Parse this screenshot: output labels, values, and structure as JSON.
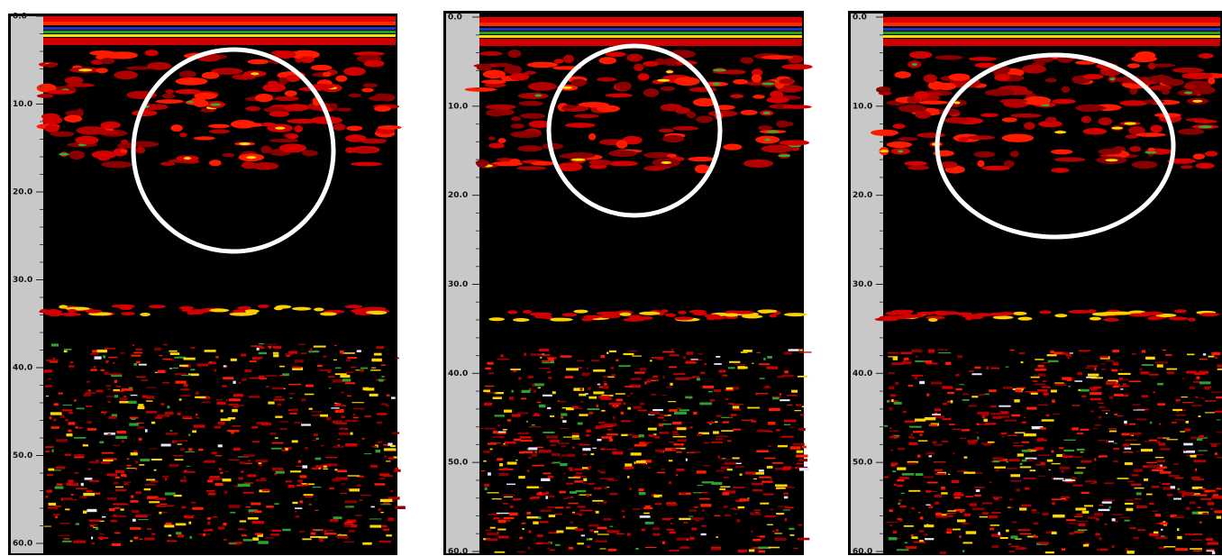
{
  "panels": [
    {
      "depth_labels": [
        "0.0",
        "10.0",
        "20.0",
        "30.0",
        "40.0",
        "50.0",
        "60.0"
      ]
    },
    {
      "depth_labels": [
        "0.0",
        "10.0",
        "20.0",
        "30.0",
        "40.0",
        "50.0",
        "60.0"
      ]
    },
    {
      "depth_labels": [
        "0.0",
        "10.0",
        "20.0",
        "30.0",
        "40.0",
        "50.0",
        "60.0"
      ]
    }
  ]
}
